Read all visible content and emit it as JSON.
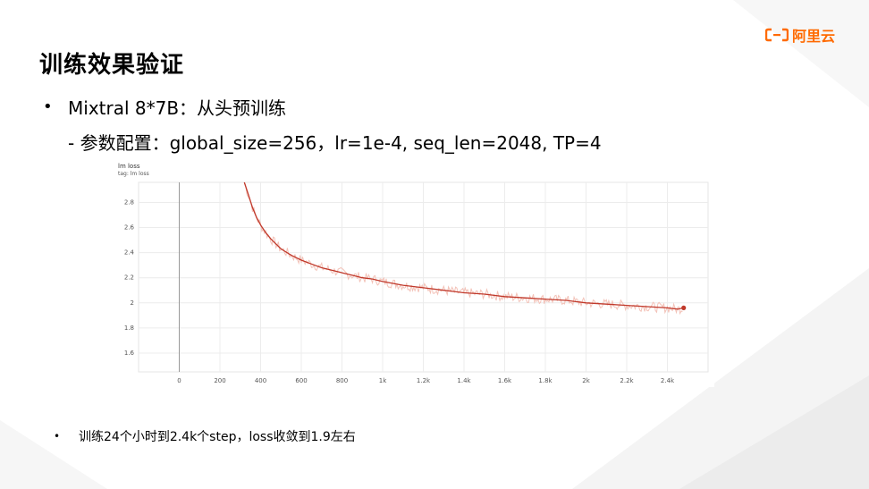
{
  "slide": {
    "title": "训练效果验证",
    "logo_text": "阿里云",
    "bullet_symbol": "•",
    "bullet1": "Mixtral 8*7B：从头预训练",
    "sub_bullet": "- 参数配置：global_size=256，lr=1e-4, seq_len=2048, TP=4",
    "bullet2": "训练24个小时到2.4k个step，loss收敛到1.9左右",
    "brand_color": "#ff6a00"
  },
  "chart_data": {
    "type": "line",
    "title": "lm loss",
    "subtitle": "tag: lm loss",
    "xlabel": "",
    "ylabel": "",
    "x_ticks": [
      0,
      200,
      400,
      600,
      800,
      1000,
      1200,
      1400,
      1600,
      1800,
      2000,
      2200,
      2400
    ],
    "x_tick_labels": [
      "0",
      "200",
      "400",
      "600",
      "800",
      "1k",
      "1.2k",
      "1.4k",
      "1.6k",
      "1.8k",
      "2k",
      "2.2k",
      "2.4k"
    ],
    "y_ticks": [
      1.6,
      1.8,
      2.0,
      2.2,
      2.4,
      2.6,
      2.8
    ],
    "y_tick_labels": [
      "1.6",
      "1.8",
      "2",
      "2.2",
      "2.4",
      "2.6",
      "2.8"
    ],
    "xlim": [
      -200,
      2600
    ],
    "ylim": [
      1.45,
      2.96
    ],
    "grid": true,
    "series": [
      {
        "color": "#c0392b",
        "raw_color": "#f3c2b8",
        "x": [
          320,
          340,
          360,
          380,
          400,
          425,
          450,
          475,
          500,
          550,
          600,
          650,
          700,
          750,
          800,
          850,
          900,
          950,
          1000,
          1100,
          1200,
          1300,
          1400,
          1500,
          1600,
          1700,
          1800,
          1900,
          2000,
          2100,
          2200,
          2300,
          2400,
          2450,
          2480
        ],
        "y": [
          2.96,
          2.86,
          2.76,
          2.68,
          2.62,
          2.56,
          2.51,
          2.47,
          2.43,
          2.38,
          2.34,
          2.31,
          2.28,
          2.26,
          2.24,
          2.22,
          2.2,
          2.19,
          2.17,
          2.14,
          2.12,
          2.1,
          2.08,
          2.07,
          2.05,
          2.04,
          2.03,
          2.02,
          2.0,
          1.99,
          1.98,
          1.97,
          1.96,
          1.95,
          1.96
        ]
      }
    ]
  }
}
